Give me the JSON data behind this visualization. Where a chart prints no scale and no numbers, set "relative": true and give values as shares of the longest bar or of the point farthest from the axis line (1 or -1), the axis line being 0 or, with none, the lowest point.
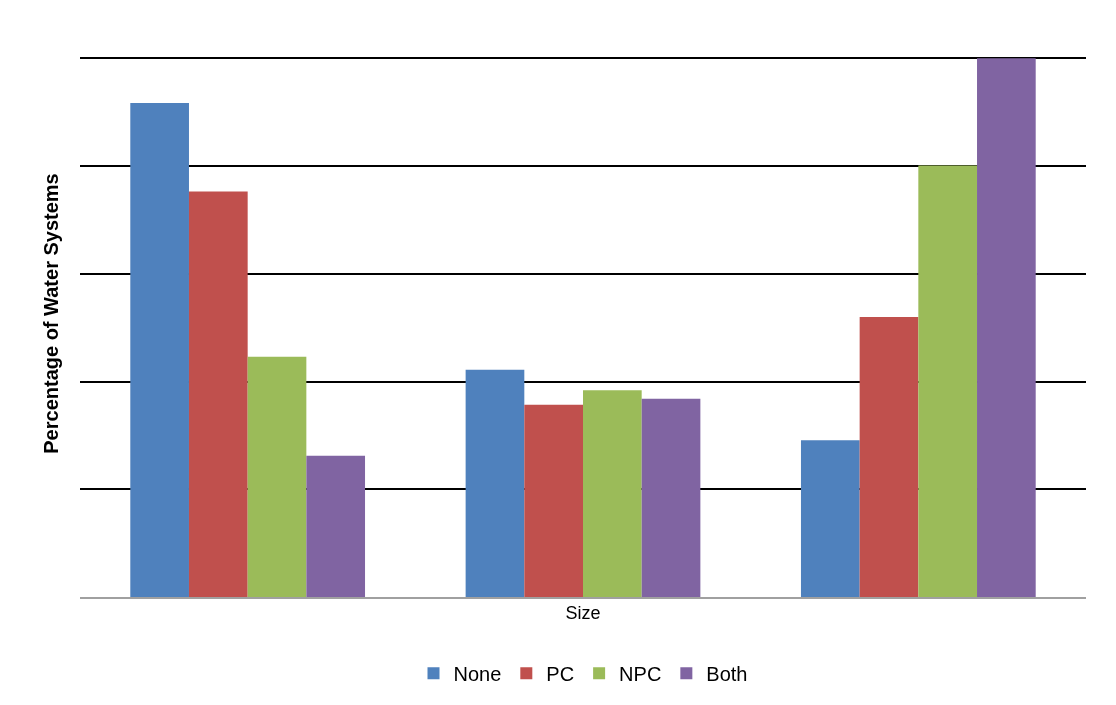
{
  "chart_data": {
    "type": "bar",
    "relative": true,
    "xlabel": "Size",
    "ylabel": "Percentage of Water Systems",
    "categories": [
      null,
      null,
      null
    ],
    "series": [
      {
        "name": "None",
        "color": "#4f81bd",
        "values": [
          0.917,
          0.422,
          0.291
        ]
      },
      {
        "name": "PC",
        "color": "#c0504d",
        "values": [
          0.753,
          0.357,
          0.52
        ]
      },
      {
        "name": "NPC",
        "color": "#9bbb59",
        "values": [
          0.446,
          0.384,
          0.801
        ]
      },
      {
        "name": "Both",
        "color": "#8064a2",
        "values": [
          0.262,
          0.368,
          1
        ]
      }
    ],
    "grid": "y",
    "legend": "bottom"
  }
}
